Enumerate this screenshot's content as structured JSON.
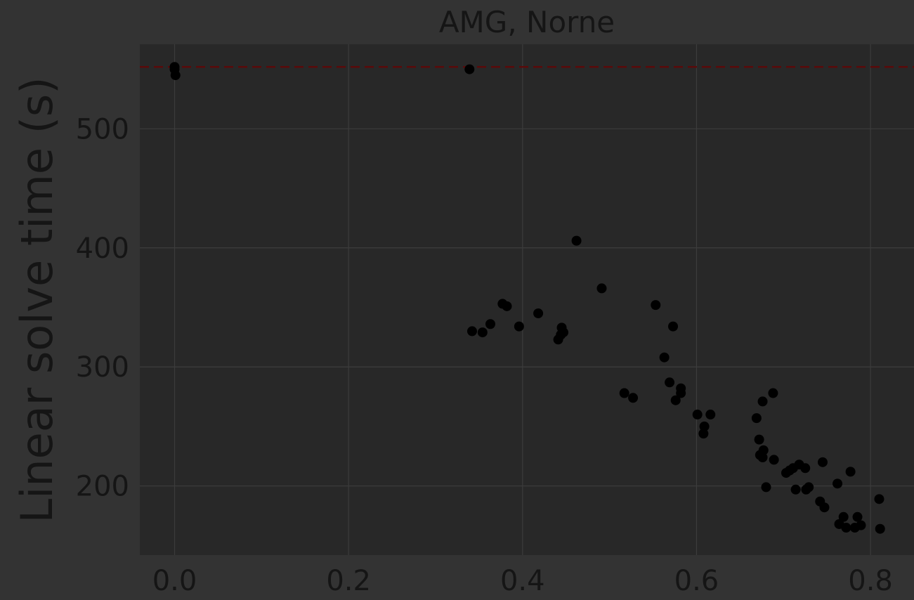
{
  "chart_data": {
    "type": "scatter",
    "title": "AMG, Norne",
    "xlabel": "",
    "ylabel": "Linear solve time (s)",
    "xlim": [
      -0.04,
      0.85
    ],
    "ylim": [
      142,
      571
    ],
    "xticks": [
      0.0,
      0.2,
      0.4,
      0.6,
      0.8
    ],
    "xtick_labels": [
      "0.0",
      "0.2",
      "0.4",
      "0.6",
      "0.8"
    ],
    "yticks": [
      200,
      300,
      400,
      500
    ],
    "ytick_labels": [
      "200",
      "300",
      "400",
      "500"
    ],
    "grid": true,
    "reference_line": {
      "y": 552,
      "style": "dashed",
      "color": "#5a0a0a"
    },
    "colors": {
      "background": "#333333",
      "plot_area": "#282828",
      "grid": "#3c3c3c",
      "text": "#151515",
      "points": "#000000"
    },
    "series": [
      {
        "points": [
          [
            0.0,
            552
          ],
          [
            0.0,
            550
          ],
          [
            0.001,
            545
          ],
          [
            0.339,
            550
          ],
          [
            0.342,
            330
          ],
          [
            0.354,
            329
          ],
          [
            0.363,
            336
          ],
          [
            0.377,
            353
          ],
          [
            0.382,
            351
          ],
          [
            0.396,
            334
          ],
          [
            0.418,
            345
          ],
          [
            0.441,
            323
          ],
          [
            0.444,
            327
          ],
          [
            0.445,
            333
          ],
          [
            0.447,
            329
          ],
          [
            0.462,
            406
          ],
          [
            0.491,
            366
          ],
          [
            0.517,
            278
          ],
          [
            0.527,
            274
          ],
          [
            0.553,
            352
          ],
          [
            0.563,
            308
          ],
          [
            0.569,
            287
          ],
          [
            0.573,
            334
          ],
          [
            0.576,
            272
          ],
          [
            0.582,
            278
          ],
          [
            0.582,
            282
          ],
          [
            0.601,
            260
          ],
          [
            0.608,
            244
          ],
          [
            0.609,
            250
          ],
          [
            0.616,
            260
          ],
          [
            0.669,
            257
          ],
          [
            0.672,
            239
          ],
          [
            0.673,
            226
          ],
          [
            0.676,
            224
          ],
          [
            0.676,
            271
          ],
          [
            0.677,
            230
          ],
          [
            0.68,
            199
          ],
          [
            0.688,
            278
          ],
          [
            0.689,
            222
          ],
          [
            0.703,
            211
          ],
          [
            0.707,
            213
          ],
          [
            0.711,
            215
          ],
          [
            0.714,
            197
          ],
          [
            0.718,
            218
          ],
          [
            0.725,
            215
          ],
          [
            0.726,
            197
          ],
          [
            0.729,
            199
          ],
          [
            0.742,
            187
          ],
          [
            0.745,
            220
          ],
          [
            0.747,
            182
          ],
          [
            0.762,
            202
          ],
          [
            0.764,
            168
          ],
          [
            0.769,
            174
          ],
          [
            0.772,
            165
          ],
          [
            0.777,
            212
          ],
          [
            0.782,
            165
          ],
          [
            0.785,
            174
          ],
          [
            0.789,
            167
          ],
          [
            0.81,
            189
          ],
          [
            0.811,
            164
          ]
        ]
      }
    ]
  }
}
